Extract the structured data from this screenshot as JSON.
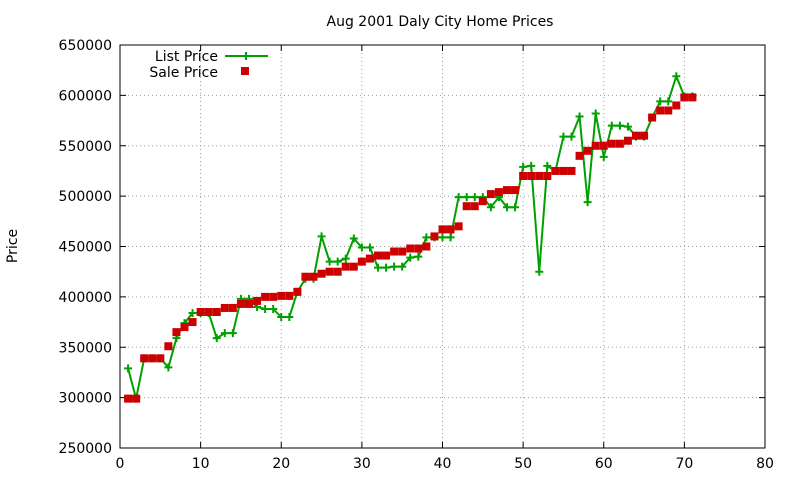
{
  "chart_data": {
    "type": "line",
    "title": "Aug 2001 Daly City Home Prices",
    "xlabel": "",
    "ylabel": "Price",
    "xlim": [
      0,
      80
    ],
    "ylim": [
      250000,
      650000
    ],
    "xticks": [
      0,
      10,
      20,
      30,
      40,
      50,
      60,
      70,
      80
    ],
    "yticks": [
      250000,
      300000,
      350000,
      400000,
      450000,
      500000,
      550000,
      600000,
      650000
    ],
    "grid": true,
    "legend_position": "top-left",
    "series": [
      {
        "name": "List Price",
        "style": "line-plus",
        "color": "#00a000",
        "x": [
          1,
          2,
          3,
          4,
          5,
          6,
          7,
          8,
          9,
          10,
          11,
          12,
          13,
          14,
          15,
          16,
          17,
          18,
          19,
          20,
          21,
          22,
          23,
          24,
          25,
          26,
          27,
          28,
          29,
          30,
          31,
          32,
          33,
          34,
          35,
          36,
          37,
          38,
          39,
          40,
          41,
          42,
          43,
          44,
          45,
          46,
          47,
          48,
          49,
          50,
          51,
          52,
          53,
          54,
          55,
          56,
          57,
          58,
          59,
          60,
          61,
          62,
          63,
          64,
          65,
          66,
          67,
          68,
          69,
          70,
          71
        ],
        "values": [
          329000,
          299000,
          339000,
          339000,
          339000,
          330000,
          359000,
          374000,
          384000,
          384000,
          384000,
          359000,
          364000,
          364000,
          398000,
          398000,
          390000,
          388000,
          388000,
          380000,
          380000,
          405000,
          418000,
          418000,
          460000,
          435000,
          435000,
          438000,
          458000,
          449000,
          449000,
          429000,
          429000,
          430000,
          430000,
          439000,
          440000,
          459000,
          459000,
          459000,
          459000,
          499000,
          499000,
          499000,
          499000,
          489000,
          499000,
          489000,
          489000,
          529000,
          530000,
          425000,
          530000,
          525000,
          559000,
          559000,
          579000,
          494000,
          582000,
          539000,
          570000,
          570000,
          569000,
          559000,
          559000,
          578000,
          594000,
          594000,
          619000,
          599000,
          599000
        ]
      },
      {
        "name": "Sale Price",
        "style": "square",
        "color": "#cc0000",
        "x": [
          1,
          2,
          3,
          4,
          5,
          6,
          7,
          8,
          9,
          10,
          11,
          12,
          13,
          14,
          15,
          16,
          17,
          18,
          19,
          20,
          21,
          22,
          23,
          24,
          25,
          26,
          27,
          28,
          29,
          30,
          31,
          32,
          33,
          34,
          35,
          36,
          37,
          38,
          39,
          40,
          41,
          42,
          43,
          44,
          45,
          46,
          47,
          48,
          49,
          50,
          51,
          52,
          53,
          54,
          55,
          56,
          57,
          58,
          59,
          60,
          61,
          62,
          63,
          64,
          65,
          66,
          67,
          68,
          69,
          70,
          71
        ],
        "values": [
          299000,
          299000,
          339000,
          339000,
          339000,
          351000,
          365000,
          370000,
          375000,
          385000,
          385000,
          385000,
          389000,
          389000,
          393000,
          393000,
          396000,
          400000,
          400000,
          401000,
          401000,
          405000,
          420000,
          420000,
          423000,
          425000,
          425000,
          430000,
          430000,
          435000,
          438000,
          441000,
          441000,
          445000,
          445000,
          448000,
          448000,
          450000,
          460000,
          467000,
          467000,
          470000,
          490000,
          490000,
          495000,
          502000,
          504000,
          506000,
          506000,
          520000,
          520000,
          520000,
          520000,
          525000,
          525000,
          525000,
          540000,
          545000,
          550000,
          550000,
          552000,
          552000,
          555000,
          560000,
          560000,
          578000,
          585000,
          585000,
          590000,
          598000,
          598000
        ]
      }
    ]
  }
}
